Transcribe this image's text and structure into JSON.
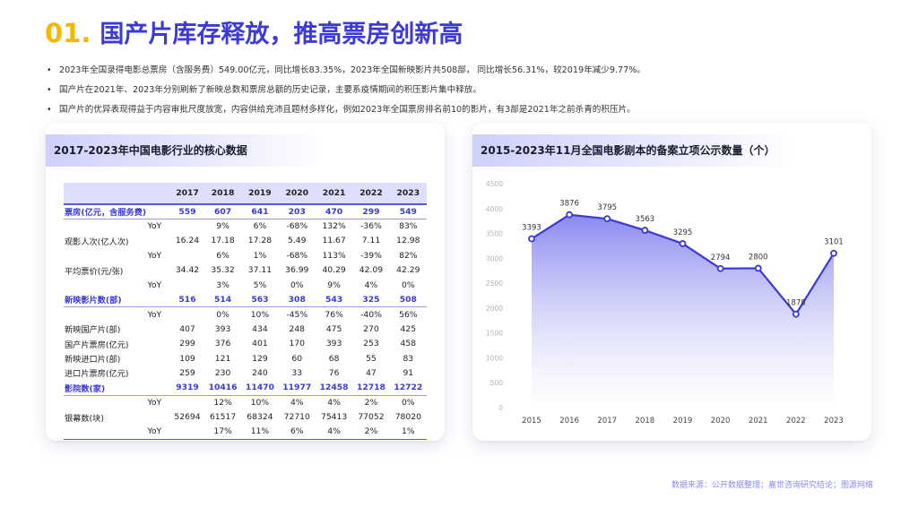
{
  "title": {
    "num": "01.",
    "text": "国产片库存释放，推高票房创新高"
  },
  "bullets": [
    "2023年全国录得电影总票房（含服务费）549.00亿元，同比增长83.35%，2023年全国新映影片共508部， 同比增长56.31%，较2019年减少9.77%。",
    "国产片在2021年、2023年分别刷新了新映总数和票房总额的历史记录，主要系疫情期间的积压影片集中释放。",
    "国产片的优异表现得益于内容审批尺度放宽，内容供给充沛且题材多样化，例如2023年全国票房排名前10的影片，有3部是2021年之前杀青的积压片。"
  ],
  "table": {
    "title": "2017-2023年中国电影行业的核心数据",
    "years": [
      "2017",
      "2018",
      "2019",
      "2020",
      "2021",
      "2022",
      "2023"
    ],
    "rows": [
      {
        "label": "票房(亿元，含服务费)",
        "highlight": true,
        "values": [
          "559",
          "607",
          "641",
          "203",
          "470",
          "299",
          "549"
        ]
      },
      {
        "label": "YoY",
        "yoy": true,
        "values": [
          "",
          "9%",
          "6%",
          "-68%",
          "132%",
          "-36%",
          "83%"
        ]
      },
      {
        "label": "观影人次(亿人次)",
        "values": [
          "16.24",
          "17.18",
          "17.28",
          "5.49",
          "11.67",
          "7.11",
          "12.98"
        ]
      },
      {
        "label": "YoY",
        "yoy": true,
        "values": [
          "",
          "6%",
          "1%",
          "-68%",
          "113%",
          "-39%",
          "82%"
        ]
      },
      {
        "label": "平均票价(元/张)",
        "values": [
          "34.42",
          "35.32",
          "37.11",
          "36.99",
          "40.29",
          "42.09",
          "42.29"
        ]
      },
      {
        "label": "YoY",
        "yoy": true,
        "values": [
          "",
          "3%",
          "5%",
          "0%",
          "9%",
          "4%",
          "0%"
        ]
      },
      {
        "label": "新映影片数(部)",
        "highlight": true,
        "values": [
          "516",
          "514",
          "563",
          "308",
          "543",
          "325",
          "508"
        ]
      },
      {
        "label": "YoY",
        "yoy": true,
        "values": [
          "",
          "0%",
          "10%",
          "-45%",
          "76%",
          "-40%",
          "56%"
        ]
      },
      {
        "label": "新映国产片(部)",
        "values": [
          "407",
          "393",
          "434",
          "248",
          "475",
          "270",
          "425"
        ]
      },
      {
        "label": "国产片票房(亿元)",
        "values": [
          "299",
          "376",
          "401",
          "170",
          "393",
          "253",
          "458"
        ]
      },
      {
        "label": "新映进口片(部)",
        "values": [
          "109",
          "121",
          "129",
          "60",
          "68",
          "55",
          "83"
        ]
      },
      {
        "label": "进口片票房(亿元)",
        "values": [
          "259",
          "230",
          "240",
          "33",
          "76",
          "47",
          "91"
        ]
      },
      {
        "label": "影院数(家)",
        "highlight": true,
        "values": [
          "9319",
          "10416",
          "11470",
          "11977",
          "12458",
          "12718",
          "12722"
        ]
      },
      {
        "label": "YoY",
        "yoy": true,
        "values": [
          "",
          "12%",
          "10%",
          "4%",
          "4%",
          "2%",
          "0%"
        ]
      },
      {
        "label": "银幕数(块)",
        "values": [
          "52694",
          "61517",
          "68324",
          "72710",
          "75413",
          "77052",
          "78020"
        ]
      },
      {
        "label": "YoY",
        "yoy": true,
        "values": [
          "",
          "17%",
          "11%",
          "6%",
          "4%",
          "2%",
          "1%"
        ]
      }
    ]
  },
  "chart_data": {
    "type": "area",
    "title": "2015-2023年11月全国电影剧本的备案立项公示数量（个）",
    "x": [
      "2015",
      "2016",
      "2017",
      "2018",
      "2019",
      "2020",
      "2021",
      "2022",
      "2023"
    ],
    "values": [
      3393,
      3876,
      3795,
      3563,
      3295,
      2794,
      2800,
      1878,
      3101
    ],
    "labels": [
      "3393",
      "3876",
      "3795",
      "3563",
      "3295",
      "2794",
      "2800",
      "1878",
      "3101"
    ],
    "ylim": [
      0,
      4500
    ],
    "yticks": [
      0,
      500,
      1000,
      1500,
      2000,
      2500,
      3000,
      3500,
      4000,
      4500
    ],
    "grid": false,
    "line_color": "#3b3ad8"
  },
  "source": "数据来源：公开数据整理；嘉世咨询研究结论；图源网络"
}
